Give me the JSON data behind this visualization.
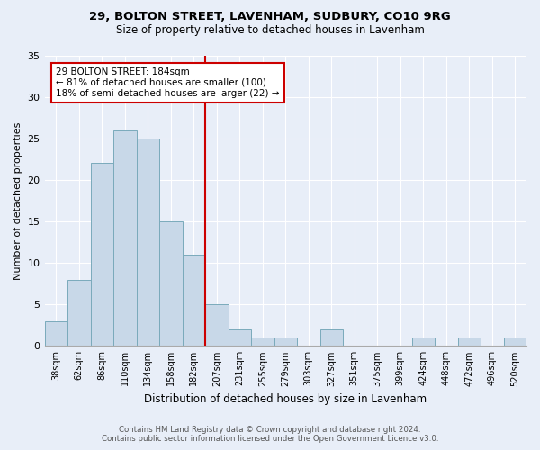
{
  "title1": "29, BOLTON STREET, LAVENHAM, SUDBURY, CO10 9RG",
  "title2": "Size of property relative to detached houses in Lavenham",
  "xlabel": "Distribution of detached houses by size in Lavenham",
  "ylabel": "Number of detached properties",
  "categories": [
    "38sqm",
    "62sqm",
    "86sqm",
    "110sqm",
    "134sqm",
    "158sqm",
    "182sqm",
    "207sqm",
    "231sqm",
    "255sqm",
    "279sqm",
    "303sqm",
    "327sqm",
    "351sqm",
    "375sqm",
    "399sqm",
    "424sqm",
    "448sqm",
    "472sqm",
    "496sqm",
    "520sqm"
  ],
  "values": [
    3,
    8,
    22,
    26,
    25,
    15,
    11,
    5,
    2,
    1,
    1,
    0,
    2,
    0,
    0,
    0,
    1,
    0,
    1,
    0,
    1
  ],
  "bar_color": "#c8d8e8",
  "bar_edge_color": "#7aaabb",
  "marker_color": "#cc0000",
  "annotation_text": "29 BOLTON STREET: 184sqm\n← 81% of detached houses are smaller (100)\n18% of semi-detached houses are larger (22) →",
  "annotation_box_color": "#ffffff",
  "annotation_box_edge": "#cc0000",
  "background_color": "#e8eef8",
  "plot_bg_color": "#e8eef8",
  "footer1": "Contains HM Land Registry data © Crown copyright and database right 2024.",
  "footer2": "Contains public sector information licensed under the Open Government Licence v3.0.",
  "ylim": [
    0,
    35
  ],
  "yticks": [
    0,
    5,
    10,
    15,
    20,
    25,
    30,
    35
  ]
}
